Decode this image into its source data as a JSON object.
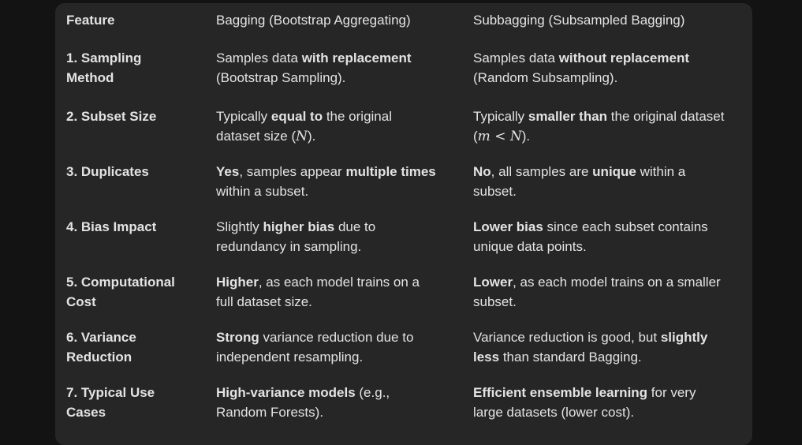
{
  "headers": [
    "Feature",
    "Bagging (Bootstrap Aggregating)",
    "Subbagging (Subsampled Bagging)"
  ],
  "rows": [
    {
      "feature": [
        "1. Sampling",
        "Method"
      ],
      "bagging": [
        {
          "t": "Samples data ",
          "b": false
        },
        {
          "t": "with replacement",
          "b": true
        },
        {
          "t": "\n",
          "b": false
        },
        {
          "t": "(Bootstrap Sampling).",
          "b": false
        }
      ],
      "subbagging": [
        {
          "t": "Samples data ",
          "b": false
        },
        {
          "t": "without replacement",
          "b": true
        },
        {
          "t": "\n",
          "b": false
        },
        {
          "t": "(Random Subsampling).",
          "b": false
        }
      ]
    },
    {
      "feature": [
        "2. Subset Size"
      ],
      "bagging": [
        {
          "t": "Typically ",
          "b": false
        },
        {
          "t": "equal to",
          "b": true
        },
        {
          "t": " the original",
          "b": false
        },
        {
          "t": "\n",
          "b": false
        },
        {
          "t": "dataset size (",
          "b": false
        },
        {
          "t": "N",
          "m": true
        },
        {
          "t": ").",
          "b": false
        }
      ],
      "subbagging": [
        {
          "t": "Typically ",
          "b": false
        },
        {
          "t": "smaller than",
          "b": true
        },
        {
          "t": " the original dataset",
          "b": false
        },
        {
          "t": "\n",
          "b": false
        },
        {
          "t": "(",
          "b": false
        },
        {
          "t": "m < N",
          "m": true
        },
        {
          "t": ").",
          "b": false
        }
      ]
    },
    {
      "feature": [
        "3. Duplicates"
      ],
      "bagging": [
        {
          "t": "Yes",
          "b": true
        },
        {
          "t": ", samples appear ",
          "b": false
        },
        {
          "t": "multiple times",
          "b": true
        },
        {
          "t": "\n",
          "b": false
        },
        {
          "t": "within a subset.",
          "b": false
        }
      ],
      "subbagging": [
        {
          "t": "No",
          "b": true
        },
        {
          "t": ", all samples are ",
          "b": false
        },
        {
          "t": "unique",
          "b": true
        },
        {
          "t": " within a",
          "b": false
        },
        {
          "t": "\n",
          "b": false
        },
        {
          "t": "subset.",
          "b": false
        }
      ]
    },
    {
      "feature": [
        "4. Bias Impact"
      ],
      "bagging": [
        {
          "t": "Slightly ",
          "b": false
        },
        {
          "t": "higher bias",
          "b": true
        },
        {
          "t": " due to",
          "b": false
        },
        {
          "t": "\n",
          "b": false
        },
        {
          "t": "redundancy in sampling.",
          "b": false
        }
      ],
      "subbagging": [
        {
          "t": "Lower bias",
          "b": true
        },
        {
          "t": " since each subset contains",
          "b": false
        },
        {
          "t": "\n",
          "b": false
        },
        {
          "t": "unique data points.",
          "b": false
        }
      ]
    },
    {
      "feature": [
        "5. Computational",
        "Cost"
      ],
      "bagging": [
        {
          "t": "Higher",
          "b": true
        },
        {
          "t": ", as each model trains on a",
          "b": false
        },
        {
          "t": "\n",
          "b": false
        },
        {
          "t": "full dataset size.",
          "b": false
        }
      ],
      "subbagging": [
        {
          "t": "Lower",
          "b": true
        },
        {
          "t": ", as each model trains on a smaller",
          "b": false
        },
        {
          "t": "\n",
          "b": false
        },
        {
          "t": "subset.",
          "b": false
        }
      ]
    },
    {
      "feature": [
        "6. Variance",
        "Reduction"
      ],
      "bagging": [
        {
          "t": "Strong",
          "b": true
        },
        {
          "t": " variance reduction due to",
          "b": false
        },
        {
          "t": "\n",
          "b": false
        },
        {
          "t": "independent resampling.",
          "b": false
        }
      ],
      "subbagging": [
        {
          "t": "Variance reduction is good, but ",
          "b": false
        },
        {
          "t": "slightly",
          "b": true
        },
        {
          "t": "\n",
          "b": false
        },
        {
          "t": "less",
          "b": true
        },
        {
          "t": " than standard Bagging.",
          "b": false
        }
      ]
    },
    {
      "feature": [
        "7. Typical Use",
        "Cases"
      ],
      "bagging": [
        {
          "t": "High-variance models",
          "b": true
        },
        {
          "t": " (e.g.,",
          "b": false
        },
        {
          "t": "\n",
          "b": false
        },
        {
          "t": "Random Forests).",
          "b": false
        }
      ],
      "subbagging": [
        {
          "t": "Efficient ensemble learning",
          "b": true
        },
        {
          "t": " for very",
          "b": false
        },
        {
          "t": "\n",
          "b": false
        },
        {
          "t": "large datasets (lower cost).",
          "b": false
        }
      ]
    }
  ]
}
